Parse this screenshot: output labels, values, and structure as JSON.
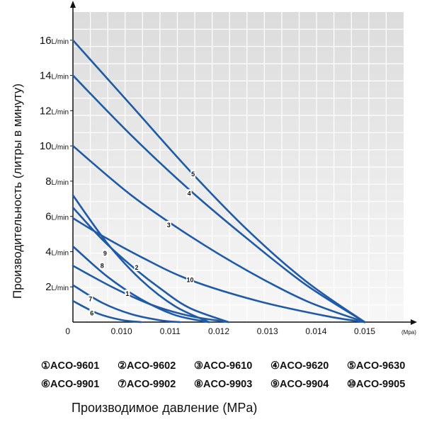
{
  "chart_data": {
    "type": "line",
    "ylabel": "Производительность (литры в минуту)",
    "xlabel": "Производимое давление (MPa)",
    "x_unit": "(Mpa)",
    "y_ticks": [
      {
        "value": 2,
        "num": "2",
        "unit": "L/min"
      },
      {
        "value": 4,
        "num": "4",
        "unit": "L/min"
      },
      {
        "value": 6,
        "num": "6",
        "unit": "L/min"
      },
      {
        "value": 8,
        "num": "8",
        "unit": "L/min"
      },
      {
        "value": 10,
        "num": "10",
        "unit": "L/min"
      },
      {
        "value": 12,
        "num": "12",
        "unit": "L/min"
      },
      {
        "value": 14,
        "num": "14",
        "unit": "L/min"
      },
      {
        "value": 16,
        "num": "16",
        "unit": "L/min"
      }
    ],
    "x_ticks": [
      {
        "value": 0.009,
        "label": "0"
      },
      {
        "value": 0.01,
        "label": "0.010"
      },
      {
        "value": 0.011,
        "label": "0.011"
      },
      {
        "value": 0.012,
        "label": "0.012"
      },
      {
        "value": 0.013,
        "label": "0.013"
      },
      {
        "value": 0.014,
        "label": "0.014"
      },
      {
        "value": 0.015,
        "label": "0.015"
      }
    ],
    "xlim": [
      0.009,
      0.0158
    ],
    "ylim": [
      0,
      17.6
    ],
    "grid": true,
    "line_color": "#1f5aa6",
    "series": [
      {
        "marker": "1",
        "x": [
          0.009,
          0.0098,
          0.0106,
          0.0114,
          0.0122
        ],
        "y": [
          3.2,
          2.0,
          1.0,
          0.35,
          0
        ]
      },
      {
        "marker": "2",
        "x": [
          0.009,
          0.0096,
          0.0102,
          0.0108,
          0.0114,
          0.0122
        ],
        "y": [
          6.5,
          4.7,
          3.2,
          1.9,
          0.8,
          0
        ]
      },
      {
        "marker": "3",
        "x": [
          0.009,
          0.0102,
          0.0114,
          0.0126,
          0.0138,
          0.015
        ],
        "y": [
          10.0,
          7.2,
          4.9,
          2.9,
          1.2,
          0
        ]
      },
      {
        "marker": "4",
        "x": [
          0.009,
          0.0102,
          0.0114,
          0.0126,
          0.0138,
          0.015
        ],
        "y": [
          14.0,
          10.6,
          7.5,
          4.7,
          2.1,
          0
        ]
      },
      {
        "marker": "5",
        "x": [
          0.009,
          0.0102,
          0.0114,
          0.0126,
          0.0138,
          0.015
        ],
        "y": [
          16.0,
          12.3,
          8.6,
          5.2,
          2.3,
          0
        ]
      },
      {
        "marker": "6",
        "x": [
          0.009,
          0.0095,
          0.01,
          0.0104
        ],
        "y": [
          1.2,
          0.5,
          0.12,
          0
        ]
      },
      {
        "marker": "7",
        "x": [
          0.009,
          0.0096,
          0.0102,
          0.0108,
          0.0112
        ],
        "y": [
          2.1,
          1.1,
          0.45,
          0.1,
          0
        ]
      },
      {
        "marker": "8",
        "x": [
          0.009,
          0.0097,
          0.0104,
          0.0111,
          0.0118
        ],
        "y": [
          4.3,
          2.6,
          1.3,
          0.4,
          0
        ]
      },
      {
        "marker": "9",
        "x": [
          0.009,
          0.0097,
          0.0104,
          0.0111,
          0.0118
        ],
        "y": [
          7.2,
          4.5,
          2.4,
          0.9,
          0
        ]
      },
      {
        "marker": "10",
        "x": [
          0.009,
          0.0096,
          0.0104,
          0.0114,
          0.0128,
          0.0142,
          0.015
        ],
        "y": [
          5.9,
          4.9,
          3.7,
          2.4,
          1.2,
          0.35,
          0
        ]
      }
    ],
    "curve_labels": [
      {
        "text": "1",
        "x": 0.01012,
        "y": 1.6
      },
      {
        "text": "2",
        "x": 0.01031,
        "y": 3.1
      },
      {
        "text": "3",
        "x": 0.01097,
        "y": 5.5
      },
      {
        "text": "4",
        "x": 0.01139,
        "y": 7.3
      },
      {
        "text": "5",
        "x": 0.01147,
        "y": 8.4
      },
      {
        "text": "6",
        "x": 0.00939,
        "y": 0.5
      },
      {
        "text": "7",
        "x": 0.00936,
        "y": 1.3
      },
      {
        "text": "8",
        "x": 0.0096,
        "y": 3.2
      },
      {
        "text": "9",
        "x": 0.00966,
        "y": 3.9
      },
      {
        "text": "10",
        "x": 0.01141,
        "y": 2.4
      }
    ]
  },
  "legend": [
    [
      "①ACO-9601",
      "②ACO-9602",
      "③ACO-9610",
      "④ACO-9620",
      "⑤ACO-9630"
    ],
    [
      "⑥ACO-9901",
      "⑦ACO-9902",
      "⑧ACO-9903",
      "⑨ACO-9904",
      "⑩ACO-9905"
    ]
  ],
  "xlabel_text": "Производимое давление (MPa)"
}
